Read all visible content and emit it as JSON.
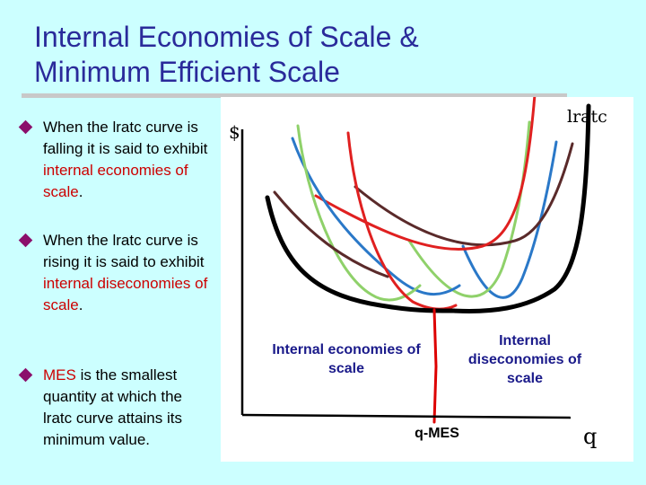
{
  "title": {
    "line1": "Internal Economies of Scale &",
    "line2": "Minimum Efficient Scale"
  },
  "bullets": [
    {
      "pre": "When the lratc curve is falling it is said to exhibit ",
      "highlight": "internal economies of scale",
      "post": "."
    },
    {
      "pre": "When the lratc curve is rising it is said to exhibit ",
      "highlight": "internal diseconomies of scale",
      "post": "."
    },
    {
      "pre": "",
      "highlight": "MES",
      "post": " is the smallest quantity at which the lratc curve attains its minimum value."
    }
  ],
  "graph": {
    "y_axis_label": "$",
    "x_axis_label": "q",
    "lratc_label": "lratc",
    "econ_label": "Internal economies of scale",
    "diseco_label": "Internal diseconomies of scale",
    "qmes_label": "q-MES"
  },
  "colors": {
    "background": "#ccffff",
    "title": "#2a2a9a",
    "bullet_marker": "#8b0f6b",
    "highlight": "#cc0000",
    "lratc_curve": "#000000",
    "mes_line": "#dd0000",
    "curve_colors": [
      "#2a78c8",
      "#8fd16a",
      "#5a2a2a",
      "#e02020",
      "#2a78c8",
      "#8fd16a",
      "#e02020",
      "#5a2a2a"
    ]
  }
}
